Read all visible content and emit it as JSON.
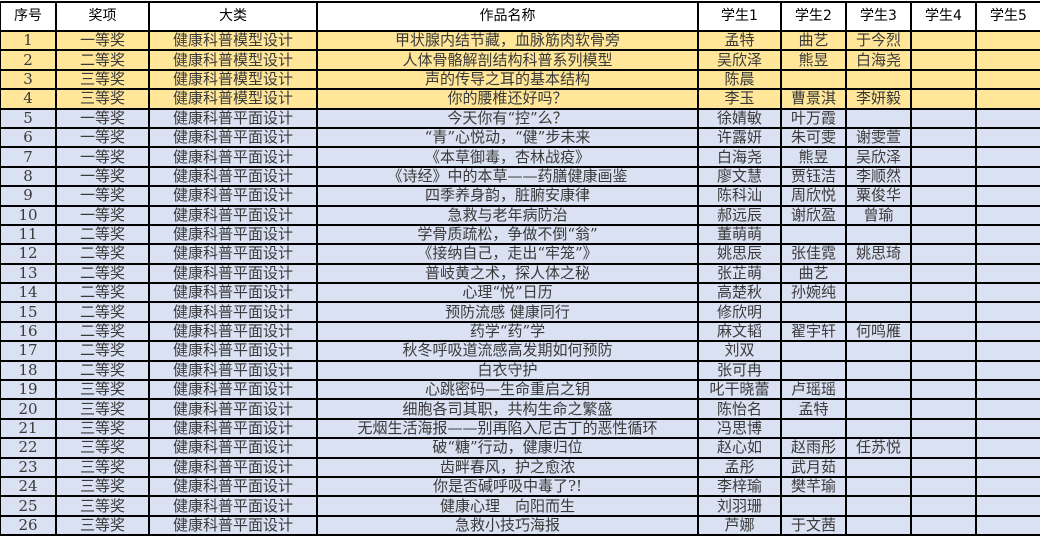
{
  "headers": [
    "序号",
    "奖项",
    "大类",
    "作品名称",
    "学生1",
    "学生2",
    "学生3",
    "学生4",
    "学生5"
  ],
  "colors": {
    "model_row": "#FFE699",
    "flat_row": "#D9E1F2",
    "header": "#FFFFFF"
  },
  "rows": [
    [
      "1",
      "一等奖",
      "健康科普模型设计",
      "甲状腺内结节藏，血脉筋肉软骨旁",
      "孟特",
      "曲艺",
      "于今烈",
      "",
      ""
    ],
    [
      "2",
      "二等奖",
      "健康科普模型设计",
      "人体骨骼解剖结构科普系列模型",
      "吴欣泽",
      "熊昱",
      "白海尧",
      "",
      ""
    ],
    [
      "3",
      "三等奖",
      "健康科普模型设计",
      "声的传导之耳的基本结构",
      "陈晨",
      "",
      "",
      "",
      ""
    ],
    [
      "4",
      "三等奖",
      "健康科普模型设计",
      "你的腰椎还好吗？",
      "李玉",
      "曹景淇",
      "李妍毅",
      "",
      ""
    ],
    [
      "5",
      "一等奖",
      "健康科普平面设计",
      "今天你有“控”么？",
      "徐婧敏",
      "叶万霞",
      "",
      "",
      ""
    ],
    [
      "6",
      "一等奖",
      "健康科普平面设计",
      "“青”心悦动，“健”步未来",
      "许露妍",
      "朱可雯",
      "谢雯萱",
      "",
      ""
    ],
    [
      "7",
      "一等奖",
      "健康科普平面设计",
      "《本草御毒，杏林战疫》",
      "白海尧",
      "熊昱",
      "吴欣泽",
      "",
      ""
    ],
    [
      "8",
      "一等奖",
      "健康科普平面设计",
      "《诗经》中的本草——药膳健康画鉴",
      "廖文慧",
      "贾钰洁",
      "李顺然",
      "",
      ""
    ],
    [
      "9",
      "一等奖",
      "健康科普平面设计",
      "四季养身韵，脏腑安康律",
      "陈科汕",
      "周欣悦",
      "粟俊华",
      "",
      ""
    ],
    [
      "10",
      "一等奖",
      "健康科普平面设计",
      "急救与老年病防治",
      "郝远辰",
      "谢欣盈",
      "曾瑜",
      "",
      ""
    ],
    [
      "11",
      "二等奖",
      "健康科普平面设计",
      "学骨质疏松，争做不倒“翁”",
      "董萌萌",
      "",
      "",
      "",
      ""
    ],
    [
      "12",
      "二等奖",
      "健康科普平面设计",
      "《接纳自己，走出“牢笼”》",
      "姚思辰",
      "张佳霓",
      "姚思琦",
      "",
      ""
    ],
    [
      "13",
      "二等奖",
      "健康科普平面设计",
      "普岐黄之术，探人体之秘",
      "张芷萌",
      "曲艺",
      "",
      "",
      ""
    ],
    [
      "14",
      "二等奖",
      "健康科普平面设计",
      "心理“悦”日历",
      "高楚秋",
      "孙婉纯",
      "",
      "",
      ""
    ],
    [
      "15",
      "二等奖",
      "健康科普平面设计",
      "预防流感 健康同行",
      "修欣明",
      "",
      "",
      "",
      ""
    ],
    [
      "16",
      "二等奖",
      "健康科普平面设计",
      "药学“药”学",
      "麻文韬",
      "翟宇轩",
      "何鸣雁",
      "",
      ""
    ],
    [
      "17",
      "二等奖",
      "健康科普平面设计",
      "秋冬呼吸道流感高发期如何预防",
      "刘双",
      "",
      "",
      "",
      ""
    ],
    [
      "18",
      "二等奖",
      "健康科普平面设计",
      "白衣守护",
      "张可冉",
      "",
      "",
      "",
      ""
    ],
    [
      "19",
      "三等奖",
      "健康科普平面设计",
      "心跳密码—生命重启之钥",
      "叱干晓蕾",
      "卢瑶瑶",
      "",
      "",
      ""
    ],
    [
      "20",
      "三等奖",
      "健康科普平面设计",
      "细胞各司其职，共构生命之繁盛",
      "陈怡名",
      "孟特",
      "",
      "",
      ""
    ],
    [
      "21",
      "三等奖",
      "健康科普平面设计",
      "无烟生活海报——别再陷入尼古丁的恶性循环",
      "冯思博",
      "",
      "",
      "",
      ""
    ],
    [
      "22",
      "三等奖",
      "健康科普平面设计",
      "破“糖”行动，健康归位",
      "赵心如",
      "赵雨彤",
      "任苏悦",
      "",
      ""
    ],
    [
      "23",
      "三等奖",
      "健康科普平面设计",
      "齿畔春风，护之愈浓",
      "孟彤",
      "武月茹",
      "",
      "",
      ""
    ],
    [
      "24",
      "三等奖",
      "健康科普平面设计",
      "你是否碱呼吸中毒了?!",
      "李梓瑜",
      "樊芊瑜",
      "",
      "",
      ""
    ],
    [
      "25",
      "三等奖",
      "健康科普平面设计",
      "健康心理　向阳而生",
      "刘羽珊",
      "",
      "",
      "",
      ""
    ],
    [
      "26",
      "三等奖",
      "健康科普平面设计",
      "急救小技巧海报",
      "芦娜",
      "于文茜",
      "",
      "",
      ""
    ]
  ]
}
